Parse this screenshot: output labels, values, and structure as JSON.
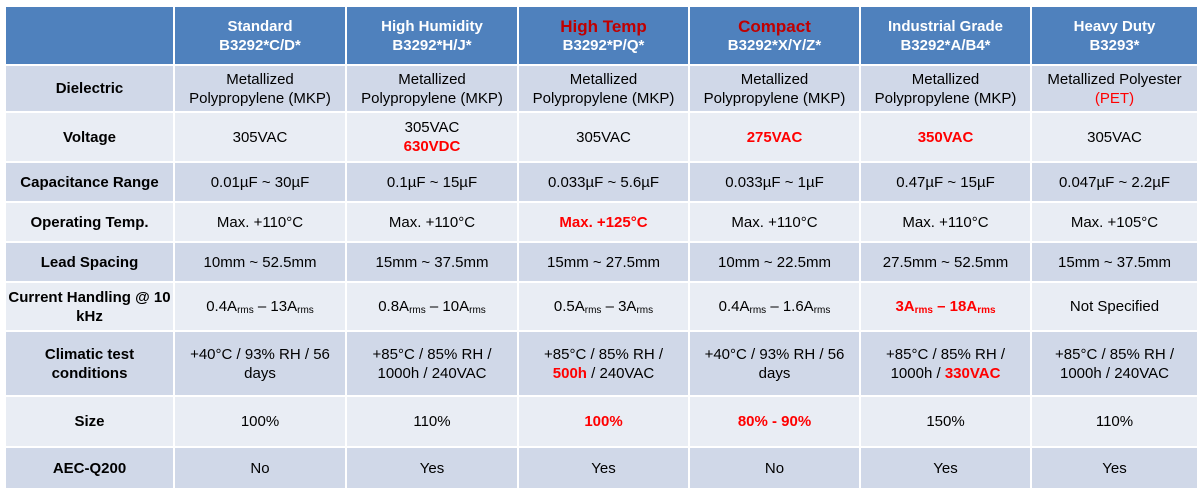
{
  "header": {
    "corner": "",
    "columns": [
      {
        "name": "Standard",
        "code": "B3292*C/D*",
        "highlight": false
      },
      {
        "name": "High Humidity",
        "code": "B3292*H/J*",
        "highlight": false
      },
      {
        "name": "High Temp",
        "code": "B3292*P/Q*",
        "highlight": true
      },
      {
        "name": "Compact",
        "code": "B3292*X/Y/Z*",
        "highlight": true
      },
      {
        "name": "Industrial Grade",
        "code": "B3292*A/B4*",
        "highlight": false
      },
      {
        "name": "Heavy Duty",
        "code": "B3293*",
        "highlight": false
      }
    ]
  },
  "colors": {
    "header_bg": "#4f81bd",
    "row_dark": "#d0d8e8",
    "row_light": "#e9edf4",
    "highlight": "#ff0000",
    "header_highlight": "#c00000"
  },
  "rows": [
    {
      "label": "Dielectric",
      "cells": [
        [
          [
            {
              "t": "Metallized"
            }
          ],
          [
            {
              "t": "Polypropylene (MKP)"
            }
          ]
        ],
        [
          [
            {
              "t": "Metallized"
            }
          ],
          [
            {
              "t": "Polypropylene (MKP)"
            }
          ]
        ],
        [
          [
            {
              "t": "Metallized"
            }
          ],
          [
            {
              "t": "Polypropylene (MKP)"
            }
          ]
        ],
        [
          [
            {
              "t": "Metallized"
            }
          ],
          [
            {
              "t": "Polypropylene (MKP)"
            }
          ]
        ],
        [
          [
            {
              "t": "Metallized"
            }
          ],
          [
            {
              "t": "Polypropylene (MKP)"
            }
          ]
        ],
        [
          [
            {
              "t": "Metallized Polyester"
            }
          ],
          [
            {
              "t": "(PET)",
              "red": true
            }
          ]
        ]
      ]
    },
    {
      "label": "Voltage",
      "cells": [
        [
          [
            {
              "t": "305VAC"
            }
          ]
        ],
        [
          [
            {
              "t": "305VAC"
            }
          ],
          [
            {
              "t": "630VDC",
              "red": true,
              "bold": true
            }
          ]
        ],
        [
          [
            {
              "t": "305VAC"
            }
          ]
        ],
        [
          [
            {
              "t": "275VAC",
              "red": true,
              "bold": true
            }
          ]
        ],
        [
          [
            {
              "t": "350VAC",
              "red": true,
              "bold": true
            }
          ]
        ],
        [
          [
            {
              "t": "305VAC"
            }
          ]
        ]
      ]
    },
    {
      "label": "Capacitance Range",
      "cells": [
        [
          [
            {
              "t": "0.01µF ~ 30µF"
            }
          ]
        ],
        [
          [
            {
              "t": "0.1µF ~ 15µF"
            }
          ]
        ],
        [
          [
            {
              "t": "0.033µF ~ 5.6µF"
            }
          ]
        ],
        [
          [
            {
              "t": "0.033µF ~ 1µF"
            }
          ]
        ],
        [
          [
            {
              "t": "0.47µF ~ 15µF"
            }
          ]
        ],
        [
          [
            {
              "t": "0.047µF ~ 2.2µF"
            }
          ]
        ]
      ]
    },
    {
      "label": "Operating Temp.",
      "cells": [
        [
          [
            {
              "t": "Max. +110°C"
            }
          ]
        ],
        [
          [
            {
              "t": "Max. +110°C"
            }
          ]
        ],
        [
          [
            {
              "t": "Max. +125°C",
              "red": true,
              "bold": true
            }
          ]
        ],
        [
          [
            {
              "t": "Max. +110°C"
            }
          ]
        ],
        [
          [
            {
              "t": "Max. +110°C"
            }
          ]
        ],
        [
          [
            {
              "t": "Max. +105°C"
            }
          ]
        ]
      ]
    },
    {
      "label": "Lead Spacing",
      "cells": [
        [
          [
            {
              "t": "10mm ~ 52.5mm"
            }
          ]
        ],
        [
          [
            {
              "t": "15mm ~ 37.5mm"
            }
          ]
        ],
        [
          [
            {
              "t": "15mm ~ 27.5mm"
            }
          ]
        ],
        [
          [
            {
              "t": "10mm ~ 22.5mm"
            }
          ]
        ],
        [
          [
            {
              "t": "27.5mm ~ 52.5mm"
            }
          ]
        ],
        [
          [
            {
              "t": "15mm ~ 37.5mm"
            }
          ]
        ]
      ]
    },
    {
      "label": "Current Handling @ 10 kHz",
      "cells": [
        [
          [
            {
              "t": "0.4A"
            },
            {
              "t": "rms",
              "sub": true
            },
            {
              "t": " – 13A"
            },
            {
              "t": "rms",
              "sub": true
            }
          ]
        ],
        [
          [
            {
              "t": "0.8A"
            },
            {
              "t": "rms",
              "sub": true
            },
            {
              "t": " – 10A"
            },
            {
              "t": "rms",
              "sub": true
            }
          ]
        ],
        [
          [
            {
              "t": "0.5A"
            },
            {
              "t": "rms",
              "sub": true
            },
            {
              "t": " – 3A"
            },
            {
              "t": "rms",
              "sub": true
            }
          ]
        ],
        [
          [
            {
              "t": "0.4A"
            },
            {
              "t": "rms",
              "sub": true
            },
            {
              "t": " – 1.6A"
            },
            {
              "t": "rms",
              "sub": true
            }
          ]
        ],
        [
          [
            {
              "t": "3A",
              "red": true,
              "bold": true
            },
            {
              "t": "rms",
              "sub": true,
              "red": true,
              "bold": true
            },
            {
              "t": " – 18A",
              "red": true,
              "bold": true
            },
            {
              "t": "rms",
              "sub": true,
              "red": true,
              "bold": true
            }
          ]
        ],
        [
          [
            {
              "t": "Not Specified"
            }
          ]
        ]
      ]
    },
    {
      "label": "Climatic test conditions",
      "cells": [
        [
          [
            {
              "t": "+40°C / 93% RH / 56"
            }
          ],
          [
            {
              "t": "days"
            }
          ]
        ],
        [
          [
            {
              "t": "+85°C / 85% RH /"
            }
          ],
          [
            {
              "t": "1000h / 240VAC"
            }
          ]
        ],
        [
          [
            {
              "t": "+85°C / 85% RH /"
            }
          ],
          [
            {
              "t": "500h",
              "red": true,
              "bold": true
            },
            {
              "t": " / 240VAC"
            }
          ]
        ],
        [
          [
            {
              "t": "+40°C / 93% RH / 56"
            }
          ],
          [
            {
              "t": "days"
            }
          ]
        ],
        [
          [
            {
              "t": "+85°C / 85% RH /"
            }
          ],
          [
            {
              "t": "1000h / "
            },
            {
              "t": "330VAC",
              "red": true,
              "bold": true
            }
          ]
        ],
        [
          [
            {
              "t": "+85°C / 85% RH /"
            }
          ],
          [
            {
              "t": "1000h / 240VAC"
            }
          ]
        ]
      ]
    },
    {
      "label": "Size",
      "cells": [
        [
          [
            {
              "t": "100%"
            }
          ]
        ],
        [
          [
            {
              "t": "110%"
            }
          ]
        ],
        [
          [
            {
              "t": "100%",
              "red": true,
              "bold": true
            }
          ]
        ],
        [
          [
            {
              "t": "80% - 90%",
              "red": true,
              "bold": true
            }
          ]
        ],
        [
          [
            {
              "t": "150%"
            }
          ]
        ],
        [
          [
            {
              "t": "110%"
            }
          ]
        ]
      ]
    },
    {
      "label": "AEC-Q200",
      "cells": [
        [
          [
            {
              "t": "No"
            }
          ]
        ],
        [
          [
            {
              "t": "Yes"
            }
          ]
        ],
        [
          [
            {
              "t": "Yes"
            }
          ]
        ],
        [
          [
            {
              "t": "No"
            }
          ]
        ],
        [
          [
            {
              "t": "Yes"
            }
          ]
        ],
        [
          [
            {
              "t": "Yes"
            }
          ]
        ]
      ]
    }
  ]
}
